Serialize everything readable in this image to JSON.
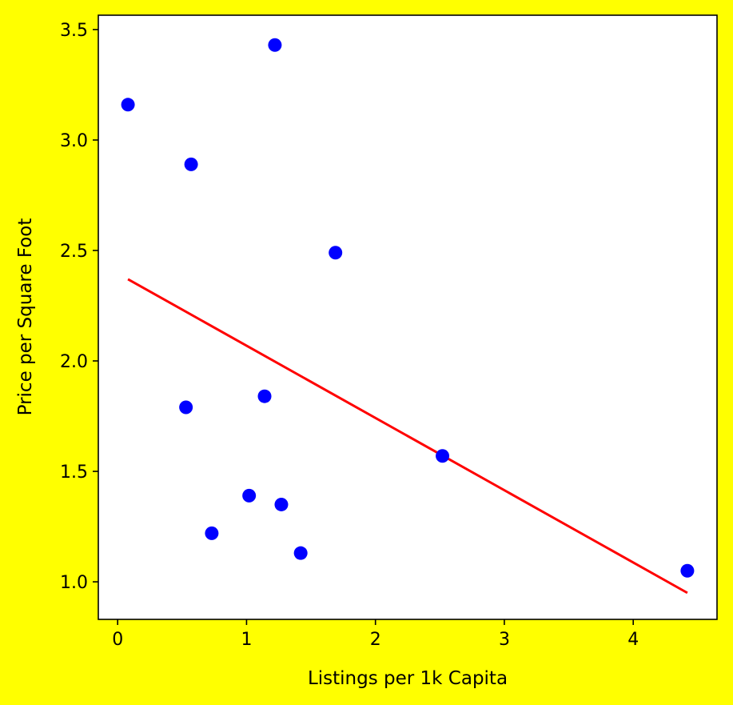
{
  "colors": {
    "figure_background": "#ffff00",
    "plot_background": "#ffffff",
    "points": "#0000ff",
    "trend_line": "#ff0000",
    "axes": "#000000"
  },
  "chart_data": {
    "type": "scatter",
    "title": "",
    "xlabel": "Listings per 1k Capita",
    "ylabel": "Price per Square Foot",
    "xlim": [
      -0.15,
      4.65
    ],
    "ylim": [
      0.83,
      3.565
    ],
    "xticks": [
      0,
      1,
      2,
      3,
      4
    ],
    "xtick_labels": [
      "0",
      "1",
      "2",
      "3",
      "4"
    ],
    "yticks": [
      1.0,
      1.5,
      2.0,
      2.5,
      3.0,
      3.5
    ],
    "ytick_labels": [
      "1.0",
      "1.5",
      "2.0",
      "2.5",
      "3.0",
      "3.5"
    ],
    "grid": false,
    "legend": "none",
    "points": [
      {
        "x": 0.08,
        "y": 3.16
      },
      {
        "x": 0.57,
        "y": 2.89
      },
      {
        "x": 1.22,
        "y": 3.43
      },
      {
        "x": 1.69,
        "y": 2.49
      },
      {
        "x": 0.53,
        "y": 1.79
      },
      {
        "x": 1.14,
        "y": 1.84
      },
      {
        "x": 2.52,
        "y": 1.57
      },
      {
        "x": 1.02,
        "y": 1.39
      },
      {
        "x": 1.27,
        "y": 1.35
      },
      {
        "x": 0.73,
        "y": 1.22
      },
      {
        "x": 1.42,
        "y": 1.13
      },
      {
        "x": 4.42,
        "y": 1.05
      }
    ],
    "trend_line": {
      "x": [
        0.08,
        4.42
      ],
      "y": [
        2.37,
        0.95
      ]
    }
  }
}
